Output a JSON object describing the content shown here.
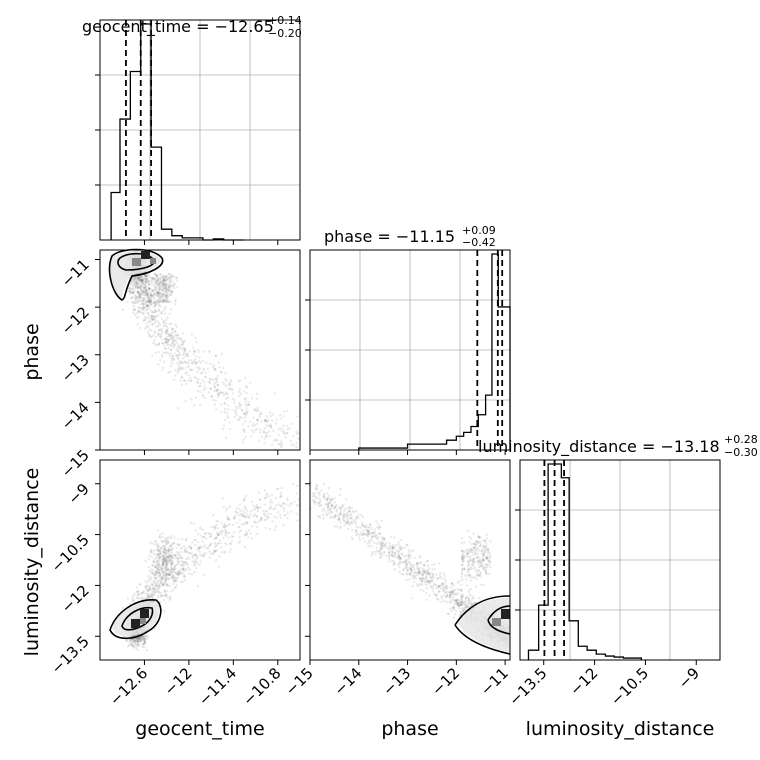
{
  "chart_data": [
    {
      "type": "histogram",
      "panel": "geocent_time-marginal",
      "title": "geocent_time = −12.65",
      "title_sup": "+0.14",
      "title_sub": "−0.20",
      "x_range": [
        -13.2,
        -10.5
      ],
      "quantiles": [
        -12.85,
        -12.65,
        -12.51
      ],
      "bins": [
        -13.05,
        -12.93,
        -12.79,
        -12.65,
        -12.51,
        -12.37,
        -12.23,
        -12.09,
        -11.95,
        -11.81,
        -11.67,
        -11.53,
        -11.39,
        -11.25
      ],
      "counts": [
        0.22,
        0.56,
        0.78,
        1.0,
        0.43,
        0.05,
        0.02,
        0.01,
        0.01,
        0.0,
        0.005,
        0.0,
        0.0
      ]
    },
    {
      "type": "scatter-contour",
      "panel": "phase-vs-geocent_time",
      "x": "geocent_time",
      "y": "phase",
      "x_range": [
        -13.2,
        -10.5
      ],
      "y_range": [
        -15,
        -10.8
      ],
      "x_ticks": [
        -12.6,
        -12.0,
        -11.4,
        -10.8
      ],
      "y_ticks": [
        -11,
        -12,
        -13,
        -14,
        -15
      ],
      "ylabel": "phase"
    },
    {
      "type": "histogram",
      "panel": "phase-marginal",
      "title": "phase = −11.15",
      "title_sup": "+0.09",
      "title_sub": "−0.42",
      "x_range": [
        -15,
        -10.9
      ],
      "quantiles": [
        -11.57,
        -11.15,
        -11.06
      ],
      "bins": [
        -14.0,
        -13.0,
        -12.2,
        -12.0,
        -11.85,
        -11.7,
        -11.55,
        -11.4,
        -11.27,
        -11.14,
        -11.02,
        -10.9
      ],
      "counts": [
        0.01,
        0.03,
        0.05,
        0.07,
        0.09,
        0.12,
        0.18,
        0.28,
        1.0,
        0.73,
        0.73
      ]
    },
    {
      "type": "scatter-contour",
      "panel": "luminosity_distance-vs-geocent_time",
      "x": "geocent_time",
      "y": "luminosity_distance",
      "x_range": [
        -13.2,
        -10.5
      ],
      "y_range": [
        -14.2,
        -8.3
      ],
      "x_ticks": [
        -12.6,
        -12.0,
        -11.4,
        -10.8
      ],
      "y_ticks": [
        -9.0,
        -10.5,
        -12.0,
        -13.5
      ],
      "xlabel": "geocent_time",
      "ylabel": "luminosity_distance"
    },
    {
      "type": "scatter-contour",
      "panel": "luminosity_distance-vs-phase",
      "x": "phase",
      "y": "luminosity_distance",
      "x_range": [
        -15,
        -10.9
      ],
      "y_range": [
        -14.2,
        -8.3
      ],
      "x_ticks": [
        -15,
        -14,
        -13,
        -12,
        -11
      ],
      "xlabel": "phase"
    },
    {
      "type": "histogram",
      "panel": "luminosity_distance-marginal",
      "title": "luminosity_distance = −13.18",
      "title_sup": "+0.28",
      "title_sub": "−0.30",
      "x_range": [
        -14.2,
        -8.3
      ],
      "x_ticks": [
        -13.5,
        -12.0,
        -10.5,
        -9.0
      ],
      "xlabel": "luminosity_distance",
      "quantiles": [
        -13.48,
        -13.18,
        -12.9
      ],
      "bins": [
        -13.95,
        -13.65,
        -13.37,
        -12.98,
        -12.75,
        -12.48,
        -12.22,
        -11.95,
        -11.68,
        -11.42,
        -11.15,
        -10.88,
        -10.62
      ],
      "counts": [
        0.05,
        0.28,
        1.0,
        0.93,
        0.2,
        0.07,
        0.05,
        0.03,
        0.02,
        0.015,
        0.01,
        0.01
      ]
    }
  ]
}
